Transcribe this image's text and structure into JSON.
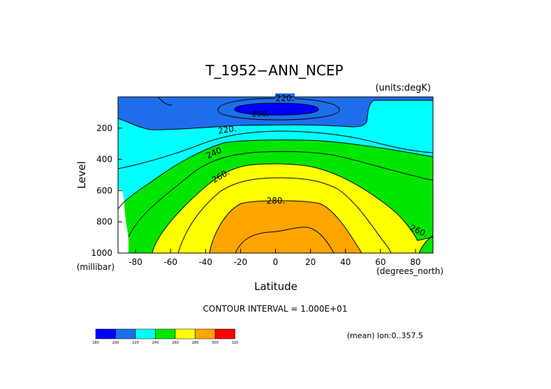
{
  "chart_data": {
    "type": "contour",
    "title": "T_1952−ANN_NCEP",
    "units": "(units:degK)",
    "xlabel": "Latitude",
    "ylabel": "Level",
    "x_unit_label": "(degrees_north)",
    "y_unit_label": "(millibar)",
    "xlim": [
      -90,
      90
    ],
    "ylim": [
      1000,
      0
    ],
    "y_inverted": true,
    "x_ticks": [
      -80,
      -60,
      -40,
      -20,
      0,
      20,
      40,
      60,
      80
    ],
    "x_tick_labels": [
      "-80",
      "-60",
      "-40",
      "-20",
      "0",
      "20",
      "40",
      "60",
      "80"
    ],
    "y_ticks": [
      200,
      400,
      600,
      800,
      1000
    ],
    "y_tick_labels": [
      "200",
      "400",
      "600",
      "800",
      "1000"
    ],
    "contour_interval_text": "CONTOUR INTERVAL = 1.000E+01",
    "mean_text": "(mean) lon:0..357.5",
    "contour_labels": [
      {
        "text": "220.",
        "lat": 5,
        "level": 105
      },
      {
        "text": "200.",
        "lat": -8,
        "level": 100
      },
      {
        "text": "220.",
        "lat": -28,
        "level": 205
      },
      {
        "text": "240",
        "lat": -35,
        "level": 350
      },
      {
        "text": "260.",
        "lat": -30,
        "level": 505
      },
      {
        "text": "280.",
        "lat": 0,
        "level": 705
      },
      {
        "text": "260.",
        "lat": 82,
        "level": 855
      }
    ],
    "contour_levels": [
      180,
      200,
      220,
      240,
      260,
      280,
      300,
      320
    ],
    "colorbar": {
      "labels": [
        "180",
        "200",
        "220",
        "240",
        "260",
        "280",
        "300",
        "320"
      ],
      "colors": [
        "#0000ff",
        "#1e6eeb",
        "#00ffff",
        "#00e600",
        "#ffff00",
        "#ffa500",
        "#ff0000"
      ]
    },
    "bands": [
      {
        "range": "<200",
        "color": "#0000ff"
      },
      {
        "range": "200-220",
        "color": "#1e6eeb"
      },
      {
        "range": "220-240",
        "color": "#00ffff"
      },
      {
        "range": "240-260",
        "color": "#00e600"
      },
      {
        "range": "260-280",
        "color": "#ffff00"
      },
      {
        "range": "280-300",
        "color": "#ffa500"
      }
    ]
  }
}
